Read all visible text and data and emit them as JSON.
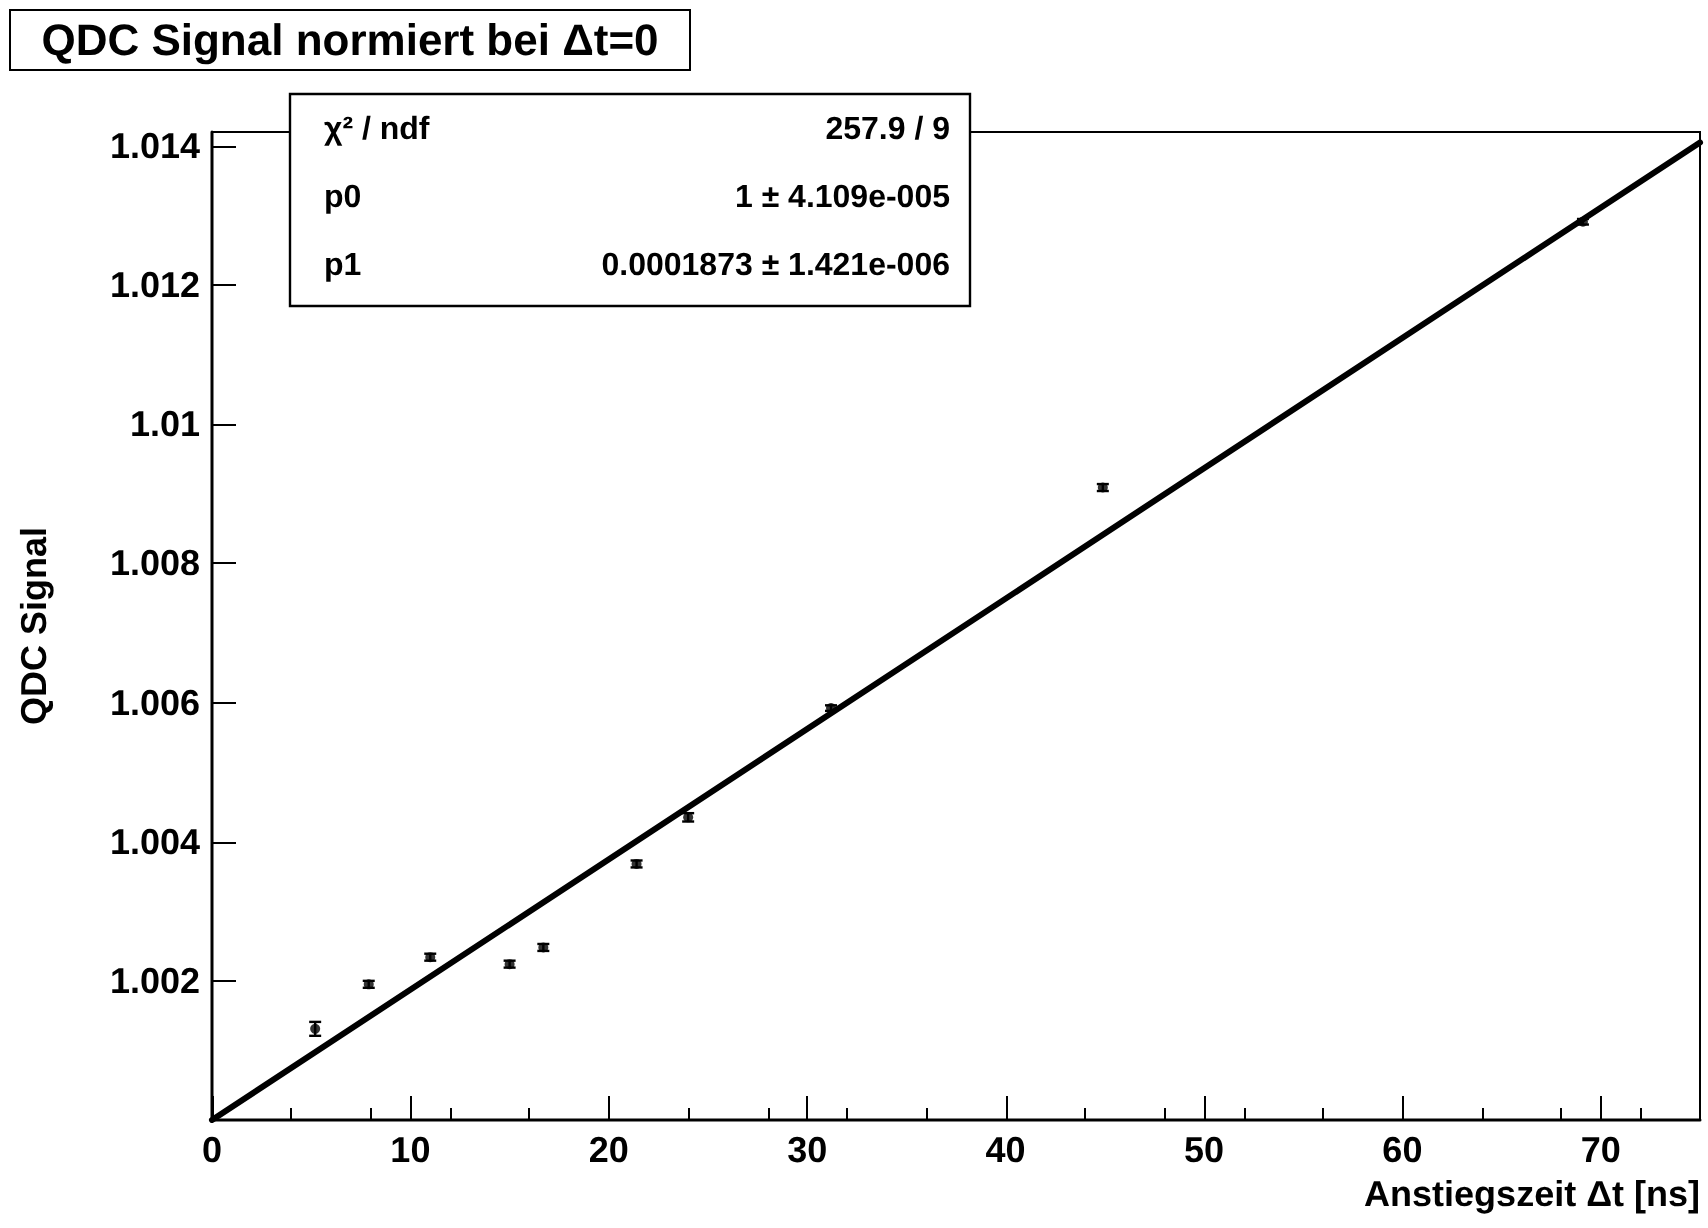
{
  "chart_data": {
    "type": "scatter",
    "title": "QDC Signal normiert bei Δt=0",
    "xlabel": "Anstiegszeit Δt [ns]",
    "ylabel": "QDC Signal",
    "annotations": [
      "χ² / ndf",
      "257.9 / 9",
      "p0",
      "1 ± 4.109e-005",
      "p1",
      "0.0001873 ± 1.421e-006"
    ],
    "x": [
      5.2,
      7.9,
      11.0,
      15.0,
      16.7,
      21.4,
      24.0,
      31.2,
      44.9,
      69.1
    ],
    "series": [
      {
        "color": "#000000",
        "values": [
          1.00131,
          1.00195,
          1.00234,
          1.00224,
          1.00248,
          1.00368,
          1.00435,
          1.00592,
          1.00909,
          1.01291
        ],
        "errors": [
          0.0001,
          5e-05,
          5e-05,
          5e-05,
          5e-05,
          5e-05,
          6e-05,
          4e-05,
          5e-05,
          4e-05
        ]
      },
      {
        "type": "line",
        "color": "#000000",
        "x": [
          0,
          75
        ],
        "values": [
          1.0,
          1.01405
        ],
        "marker": "none",
        "line_style": "solid"
      }
    ],
    "xlim": [
      0,
      75
    ],
    "xticks": [
      0,
      10,
      20,
      30,
      40,
      50,
      60,
      70
    ],
    "ylim": [
      1.0,
      1.0142
    ],
    "yticks": [
      1.002,
      1.004,
      1.006,
      1.008,
      1.01,
      1.012,
      1.014
    ],
    "grid": false,
    "marker": "circle"
  }
}
